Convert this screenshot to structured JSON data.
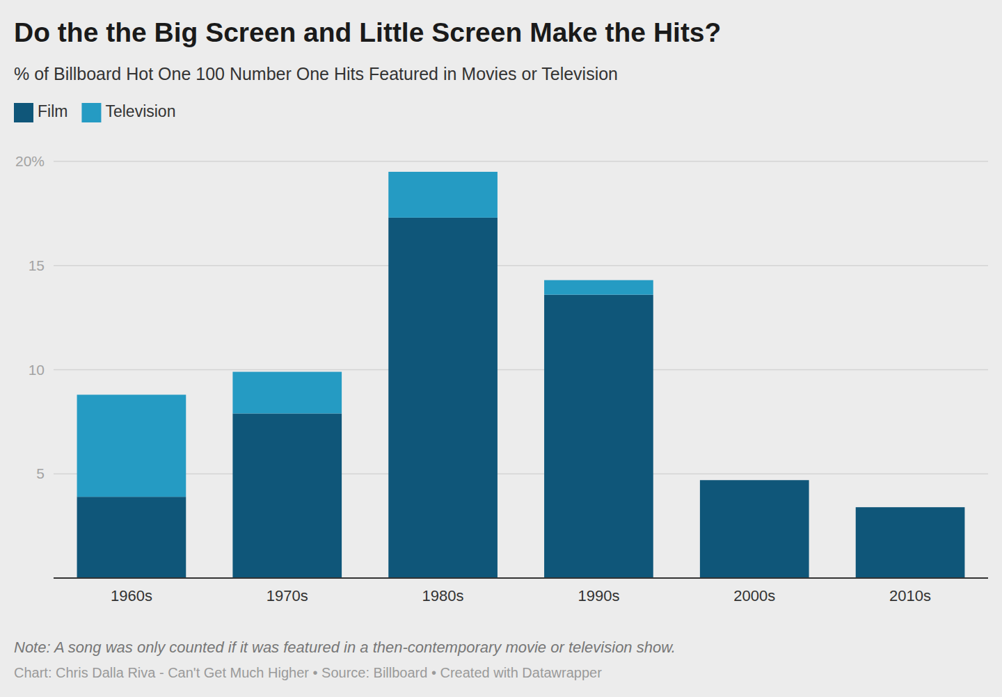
{
  "chart_data": {
    "type": "bar",
    "title": "Do the the Big Screen and Little Screen Make the Hits?",
    "subtitle": "% of Billboard Hot One 100 Number One Hits Featured in Movies or Television",
    "categories": [
      "1960s",
      "1970s",
      "1980s",
      "1990s",
      "2000s",
      "2010s"
    ],
    "series": [
      {
        "name": "Film",
        "color": "#0f5679",
        "values": [
          3.9,
          7.9,
          17.3,
          13.6,
          4.7,
          3.4
        ]
      },
      {
        "name": "Television",
        "color": "#259bc3",
        "values": [
          4.9,
          2.0,
          2.2,
          0.7,
          0,
          0
        ]
      }
    ],
    "stacked": true,
    "ylim": [
      0,
      20
    ],
    "yticks": [
      5,
      10,
      15,
      {
        "value": 20,
        "label": "20%"
      }
    ],
    "grid": true,
    "legend": "top-left",
    "note": "Note: A song was only counted if it was featured in a then-contemporary movie or television show.",
    "credit": "Chart: Chris Dalla Riva - Can't Get Much Higher • Source: Billboard • Created with Datawrapper"
  }
}
